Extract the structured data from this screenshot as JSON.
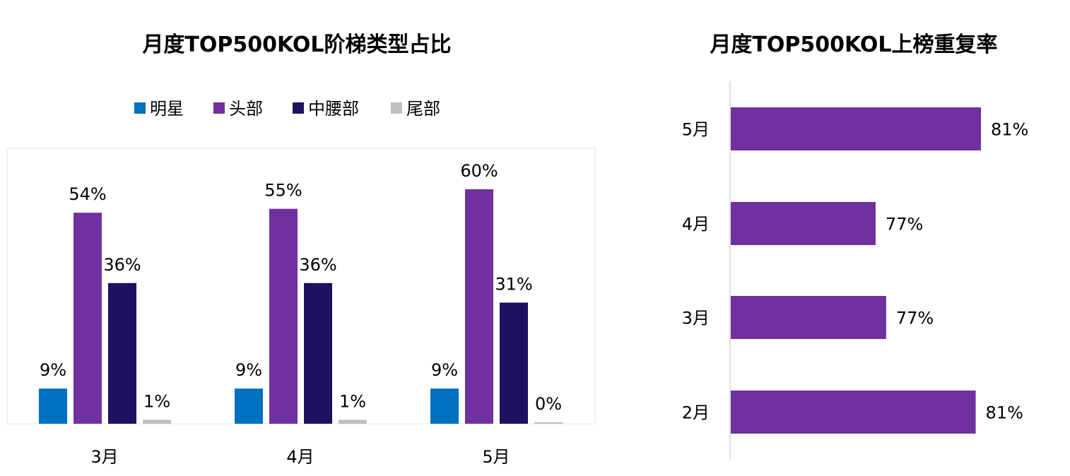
{
  "chart_data": [
    {
      "type": "bar",
      "title": "月度TOP500KOL阶梯类型占比",
      "categories": [
        "3月",
        "4月",
        "5月"
      ],
      "series": [
        {
          "name": "明星",
          "color": "#0070C0",
          "values": [
            9,
            9,
            9
          ],
          "labels": [
            "9%",
            "9%",
            "9%"
          ]
        },
        {
          "name": "头部",
          "color": "#7030A0",
          "values": [
            54,
            55,
            60
          ],
          "labels": [
            "54%",
            "55%",
            "60%"
          ]
        },
        {
          "name": "中腰部",
          "color": "#201060",
          "values": [
            36,
            36,
            31
          ],
          "labels": [
            "36%",
            "36%",
            "31%"
          ]
        },
        {
          "name": "尾部",
          "color": "#BFBFBF",
          "values": [
            1,
            1,
            0.4
          ],
          "labels": [
            "1%",
            "1%",
            "0%"
          ]
        }
      ],
      "ylim": [
        0,
        70
      ],
      "grid": false,
      "legend": "top"
    },
    {
      "type": "bar",
      "orientation": "horizontal",
      "title": "月度TOP500KOL上榜重复率",
      "categories": [
        "5月",
        "4月",
        "3月",
        "2月"
      ],
      "values": [
        81.0,
        77.0,
        77.4,
        80.8
      ],
      "labels": [
        "81%",
        "77%",
        "77%",
        "81%"
      ],
      "color": "#7030A0",
      "xlim": [
        71.5,
        85
      ],
      "grid": false
    }
  ]
}
